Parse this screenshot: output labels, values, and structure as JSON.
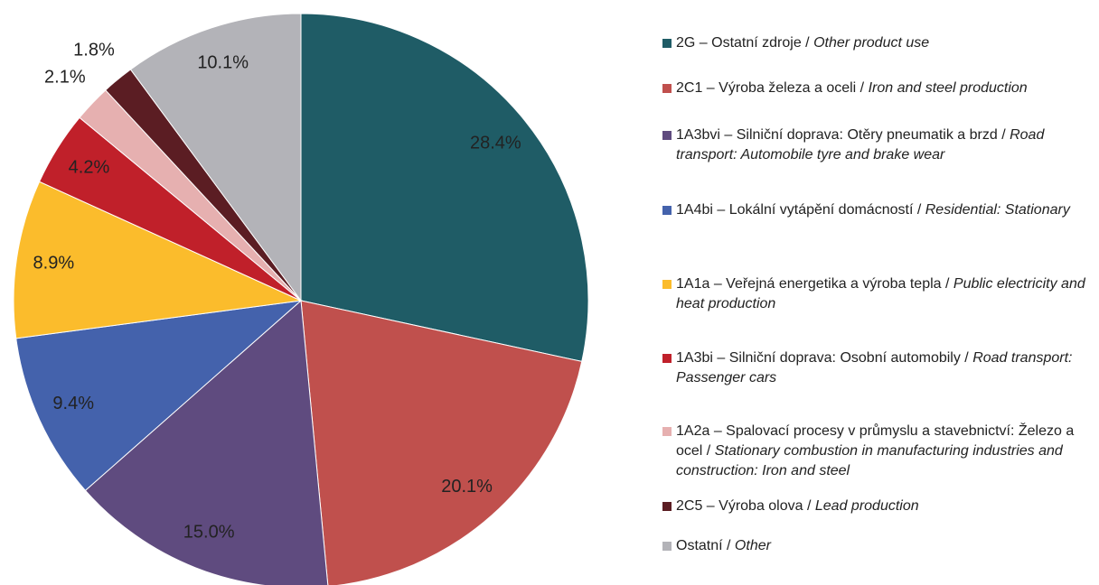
{
  "chart_data": {
    "type": "pie",
    "categories": [
      "2G – Ostatní zdroje /",
      "2C1 – Výroba železa a oceli /",
      "1A3bvi – Silniční doprava: Otěry pneumatik a brzd /",
      "1A4bi – Lokální vytápění domácností /",
      "1A1a – Veřejná energetika a výroba tepla /",
      "1A3bi – Silniční doprava: Osobní automobily /",
      "1A2a – Spalovací procesy v průmyslu a stavebnictví: Železo a ocel /",
      "2C5 – Výroba olova /",
      "Ostatní /"
    ],
    "categories_en": [
      "Other product use",
      "Iron and steel production",
      "Road transport: Automobile tyre and brake wear",
      "Residential: Stationary",
      "Public electricity and heat production",
      "Road transport: Passenger cars",
      "Stationary combustion in manufacturing industries and construction: Iron and steel",
      "Lead production",
      "Other"
    ],
    "values": [
      28.4,
      20.1,
      15.0,
      9.4,
      8.9,
      4.2,
      2.1,
      1.8,
      10.1
    ],
    "value_labels": [
      "28.4%",
      "20.1%",
      "15.0%",
      "9.4%",
      "8.9%",
      "4.2%",
      "2.1%",
      "1.8%",
      "10.1%"
    ],
    "colors": [
      "#1f5c66",
      "#c0504d",
      "#5f4b7f",
      "#4462ac",
      "#fbbc2c",
      "#c0202a",
      "#e6b0b0",
      "#5b1d23",
      "#b3b3b8"
    ]
  }
}
